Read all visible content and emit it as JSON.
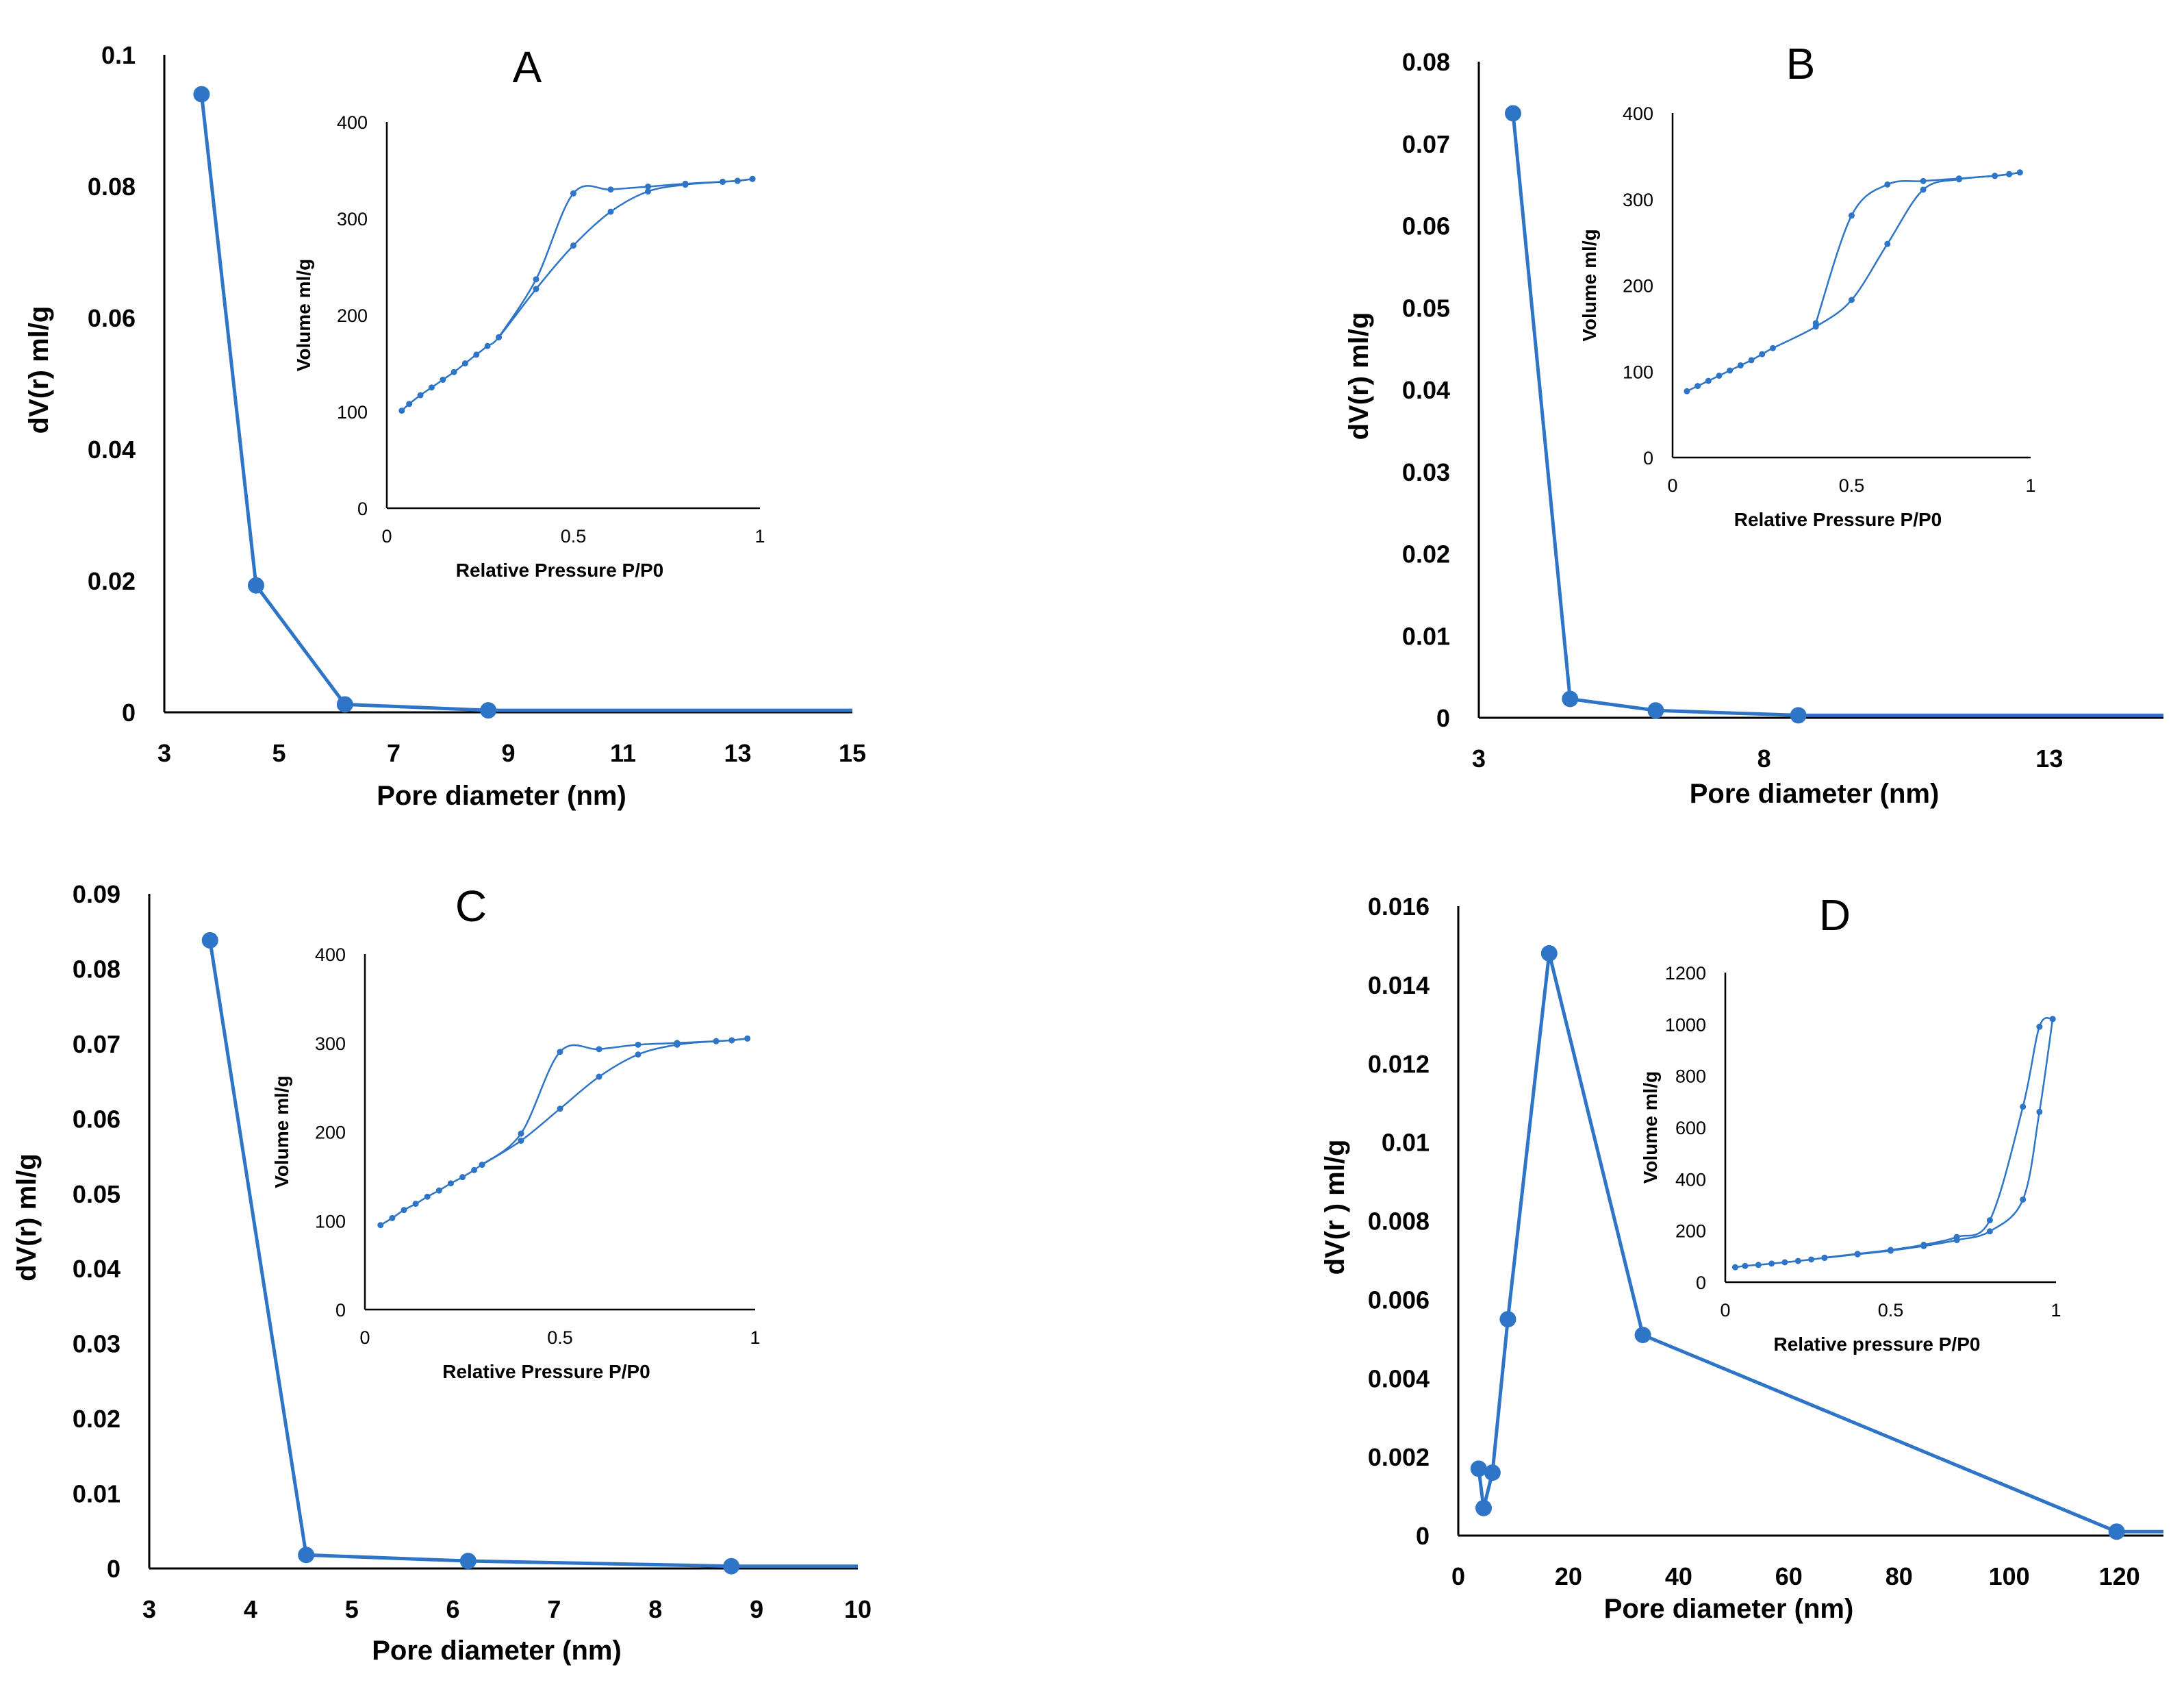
{
  "colors": {
    "series": "#2E75C8",
    "axis": "#000000",
    "background": "#FFFFFF"
  },
  "chart_data": [
    {
      "type": "line",
      "panel_label": "A",
      "xlabel": "Pore diameter (nm)",
      "ylabel": "dV(r) ml/g",
      "xlim": [
        3,
        15
      ],
      "ylim": [
        0,
        0.1
      ],
      "x_ticks": [
        "3",
        "5",
        "7",
        "9",
        "11",
        "13",
        "15"
      ],
      "y_ticks": [
        "0",
        "0.02",
        "0.04",
        "0.06",
        "0.08",
        "0.1"
      ],
      "series": [
        {
          "name": "dV(r)",
          "x": [
            3.65,
            4.6,
            6.15,
            8.65
          ],
          "y": [
            0.094,
            0.0193,
            0.0012,
            0.0003
          ]
        }
      ],
      "inset": {
        "type": "line",
        "xlabel": "Relative Pressure P/P0",
        "ylabel": "Volume ml/g",
        "xlim": [
          0,
          1
        ],
        "ylim": [
          0,
          400
        ],
        "x_ticks": [
          "0",
          "0.5",
          "1"
        ],
        "y_ticks": [
          "0",
          "100",
          "200",
          "300",
          "400"
        ],
        "series": [
          {
            "name": "adsorption",
            "x": [
              0.04,
              0.06,
              0.09,
              0.12,
              0.15,
              0.18,
              0.21,
              0.24,
              0.27,
              0.3,
              0.4,
              0.5,
              0.6,
              0.7,
              0.8,
              0.9,
              0.94,
              0.98
            ],
            "y": [
              101,
              108,
              117,
              125,
              133,
              141,
              150,
              159,
              168,
              177,
              227,
              272,
              307,
              328,
              335,
              338,
              339,
              341
            ]
          },
          {
            "name": "desorption",
            "x": [
              0.98,
              0.94,
              0.9,
              0.8,
              0.7,
              0.6,
              0.5,
              0.4,
              0.3
            ],
            "y": [
              341,
              339,
              338,
              336,
              333,
              330,
              326,
              237,
              177
            ]
          }
        ]
      }
    },
    {
      "type": "line",
      "panel_label": "B",
      "xlabel": "Pore diameter (nm)",
      "ylabel": "dV(r) ml/g",
      "xlim": [
        3,
        15
      ],
      "ylim": [
        0,
        0.08
      ],
      "x_ticks": [
        "3",
        "8",
        "13"
      ],
      "y_ticks": [
        "0",
        "0.01",
        "0.02",
        "0.03",
        "0.04",
        "0.05",
        "0.06",
        "0.07",
        "0.08"
      ],
      "series": [
        {
          "name": "dV(r)",
          "x": [
            3.6,
            4.6,
            6.1,
            8.6
          ],
          "y": [
            0.0737,
            0.0023,
            0.0009,
            0.0003
          ]
        }
      ],
      "inset": {
        "type": "line",
        "xlabel": "Relative Pressure P/P0",
        "ylabel": "Volume ml/g",
        "xlim": [
          0,
          1
        ],
        "ylim": [
          0,
          400
        ],
        "x_ticks": [
          "0",
          "0.5",
          "1"
        ],
        "y_ticks": [
          "0",
          "100",
          "200",
          "300",
          "400"
        ],
        "series": [
          {
            "name": "adsorption",
            "x": [
              0.04,
              0.07,
              0.1,
              0.13,
              0.16,
              0.19,
              0.22,
              0.25,
              0.28,
              0.4,
              0.5,
              0.6,
              0.7,
              0.8,
              0.9,
              0.94,
              0.97
            ],
            "y": [
              77,
              83,
              89,
              95,
              101,
              107,
              113,
              120,
              127,
              152,
              183,
              248,
              311,
              323,
              327,
              329,
              331
            ]
          },
          {
            "name": "desorption",
            "x": [
              0.97,
              0.94,
              0.9,
              0.8,
              0.7,
              0.6,
              0.5,
              0.4
            ],
            "y": [
              331,
              329,
              327,
              324,
              321,
              317,
              281,
              156
            ]
          }
        ]
      }
    },
    {
      "type": "line",
      "panel_label": "C",
      "xlabel": "Pore diameter (nm)",
      "ylabel": "dV(r) ml/g",
      "xlim": [
        3,
        10
      ],
      "ylim": [
        0,
        0.09
      ],
      "x_ticks": [
        "3",
        "4",
        "5",
        "6",
        "7",
        "8",
        "9",
        "10"
      ],
      "y_ticks": [
        "0",
        "0.01",
        "0.02",
        "0.03",
        "0.04",
        "0.05",
        "0.06",
        "0.07",
        "0.08",
        "0.09"
      ],
      "series": [
        {
          "name": "dV(r)",
          "x": [
            3.6,
            4.55,
            6.15,
            8.75
          ],
          "y": [
            0.0838,
            0.0018,
            0.001,
            0.0003
          ]
        }
      ],
      "inset": {
        "type": "line",
        "xlabel": "Relative Pressure P/P0",
        "ylabel": "Volume ml/g",
        "xlim": [
          0,
          1
        ],
        "ylim": [
          0,
          400
        ],
        "x_ticks": [
          "0",
          "0.5",
          "1"
        ],
        "y_ticks": [
          "0",
          "100",
          "200",
          "300",
          "400"
        ],
        "series": [
          {
            "name": "adsorption",
            "x": [
              0.04,
              0.07,
              0.1,
              0.13,
              0.16,
              0.19,
              0.22,
              0.25,
              0.28,
              0.3,
              0.4,
              0.5,
              0.6,
              0.7,
              0.8,
              0.9,
              0.94,
              0.98
            ],
            "y": [
              95,
              103,
              112,
              119,
              127,
              134,
              142,
              149,
              157,
              163,
              190,
              226,
              262,
              287,
              298,
              302,
              303,
              305
            ]
          },
          {
            "name": "desorption",
            "x": [
              0.98,
              0.94,
              0.9,
              0.8,
              0.7,
              0.6,
              0.5,
              0.4,
              0.3
            ],
            "y": [
              305,
              303,
              302,
              300,
              298,
              293,
              290,
              198,
              163
            ]
          }
        ]
      }
    },
    {
      "type": "line",
      "panel_label": "D",
      "xlabel": "Pore diameter (nm)",
      "ylabel": "dV(r ) ml/g",
      "xlim": [
        0,
        128
      ],
      "ylim": [
        0,
        0.016
      ],
      "x_ticks": [
        "0",
        "20",
        "40",
        "60",
        "80",
        "100",
        "120"
      ],
      "y_ticks": [
        "0",
        "0.002",
        "0.004",
        "0.006",
        "0.008",
        "0.01",
        "0.012",
        "0.014",
        "0.016"
      ],
      "series": [
        {
          "name": "dV(r)",
          "x": [
            3.7,
            4.6,
            6.2,
            9.0,
            16.5,
            33.5,
            119.5
          ],
          "y": [
            0.0017,
            0.0007,
            0.0016,
            0.0055,
            0.0148,
            0.0051,
            0.0001
          ]
        }
      ],
      "inset": {
        "type": "line",
        "xlabel": "Relative pressure P/P0",
        "ylabel": "Volume ml/g",
        "xlim": [
          0,
          1
        ],
        "ylim": [
          0,
          1200
        ],
        "x_ticks": [
          "0",
          "0.5",
          "1"
        ],
        "y_ticks": [
          "0",
          "200",
          "400",
          "600",
          "800",
          "1000",
          "1200"
        ],
        "series": [
          {
            "name": "adsorption",
            "x": [
              0.03,
              0.06,
              0.1,
              0.14,
              0.18,
              0.22,
              0.26,
              0.3,
              0.4,
              0.5,
              0.6,
              0.7,
              0.8,
              0.9,
              0.95,
              0.99
            ],
            "y": [
              58,
              63,
              67,
              72,
              77,
              82,
              88,
              94,
              108,
              122,
              140,
              163,
              197,
              320,
              660,
              1020
            ]
          },
          {
            "name": "desorption",
            "x": [
              0.99,
              0.95,
              0.9,
              0.8,
              0.7,
              0.6,
              0.5,
              0.4,
              0.3
            ],
            "y": [
              1020,
              990,
              680,
              240,
              175,
              145,
              125,
              110,
              95
            ]
          }
        ]
      }
    }
  ]
}
